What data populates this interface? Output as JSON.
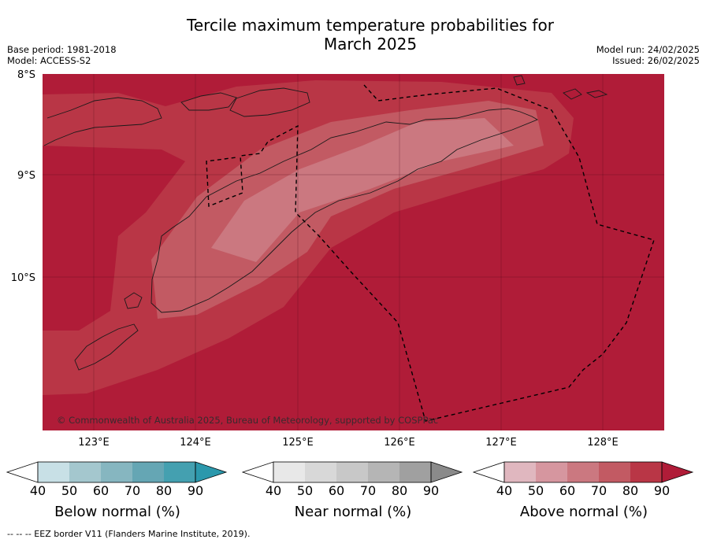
{
  "title_line1": "Tercile maximum temperature probabilities for",
  "title_line2": "March 2025",
  "meta_left": {
    "base_period": "Base period: 1981-2018",
    "model": "Model: ACCESS-S2"
  },
  "meta_right": {
    "model_run": "Model run: 24/02/2025",
    "issued": "Issued: 26/02/2025"
  },
  "map": {
    "lat_labels": [
      "8°S",
      "9°S",
      "10°S"
    ],
    "lon_labels": [
      "123°E",
      "124°E",
      "125°E",
      "126°E",
      "127°E",
      "128°E"
    ],
    "copyright": "© Commonwealth of Australia 2025, Bureau of Meteorology, supported by COSPPac"
  },
  "legends": [
    {
      "title": "Below normal (%)",
      "ticks": [
        "40",
        "50",
        "60",
        "70",
        "80",
        "90"
      ],
      "colors": [
        "#c8e0e6",
        "#a4c7ce",
        "#86b6c0",
        "#65a6b4",
        "#44a0b0",
        "#2b98ac"
      ]
    },
    {
      "title": "Near normal (%)",
      "ticks": [
        "40",
        "50",
        "60",
        "70",
        "80",
        "90"
      ],
      "colors": [
        "#e8e8e8",
        "#d8d8d8",
        "#c8c8c8",
        "#b5b5b5",
        "#a0a0a0",
        "#8a8a8a"
      ]
    },
    {
      "title": "Above normal (%)",
      "ticks": [
        "40",
        "50",
        "60",
        "70",
        "80",
        "90"
      ],
      "colors": [
        "#e0b7bf",
        "#d6969f",
        "#cb7880",
        "#c25a63",
        "#b93646",
        "#b01c38"
      ]
    }
  ],
  "footer": "--  --  -- EEZ border V11 (Flanders Marine Institute, 2019)."
}
